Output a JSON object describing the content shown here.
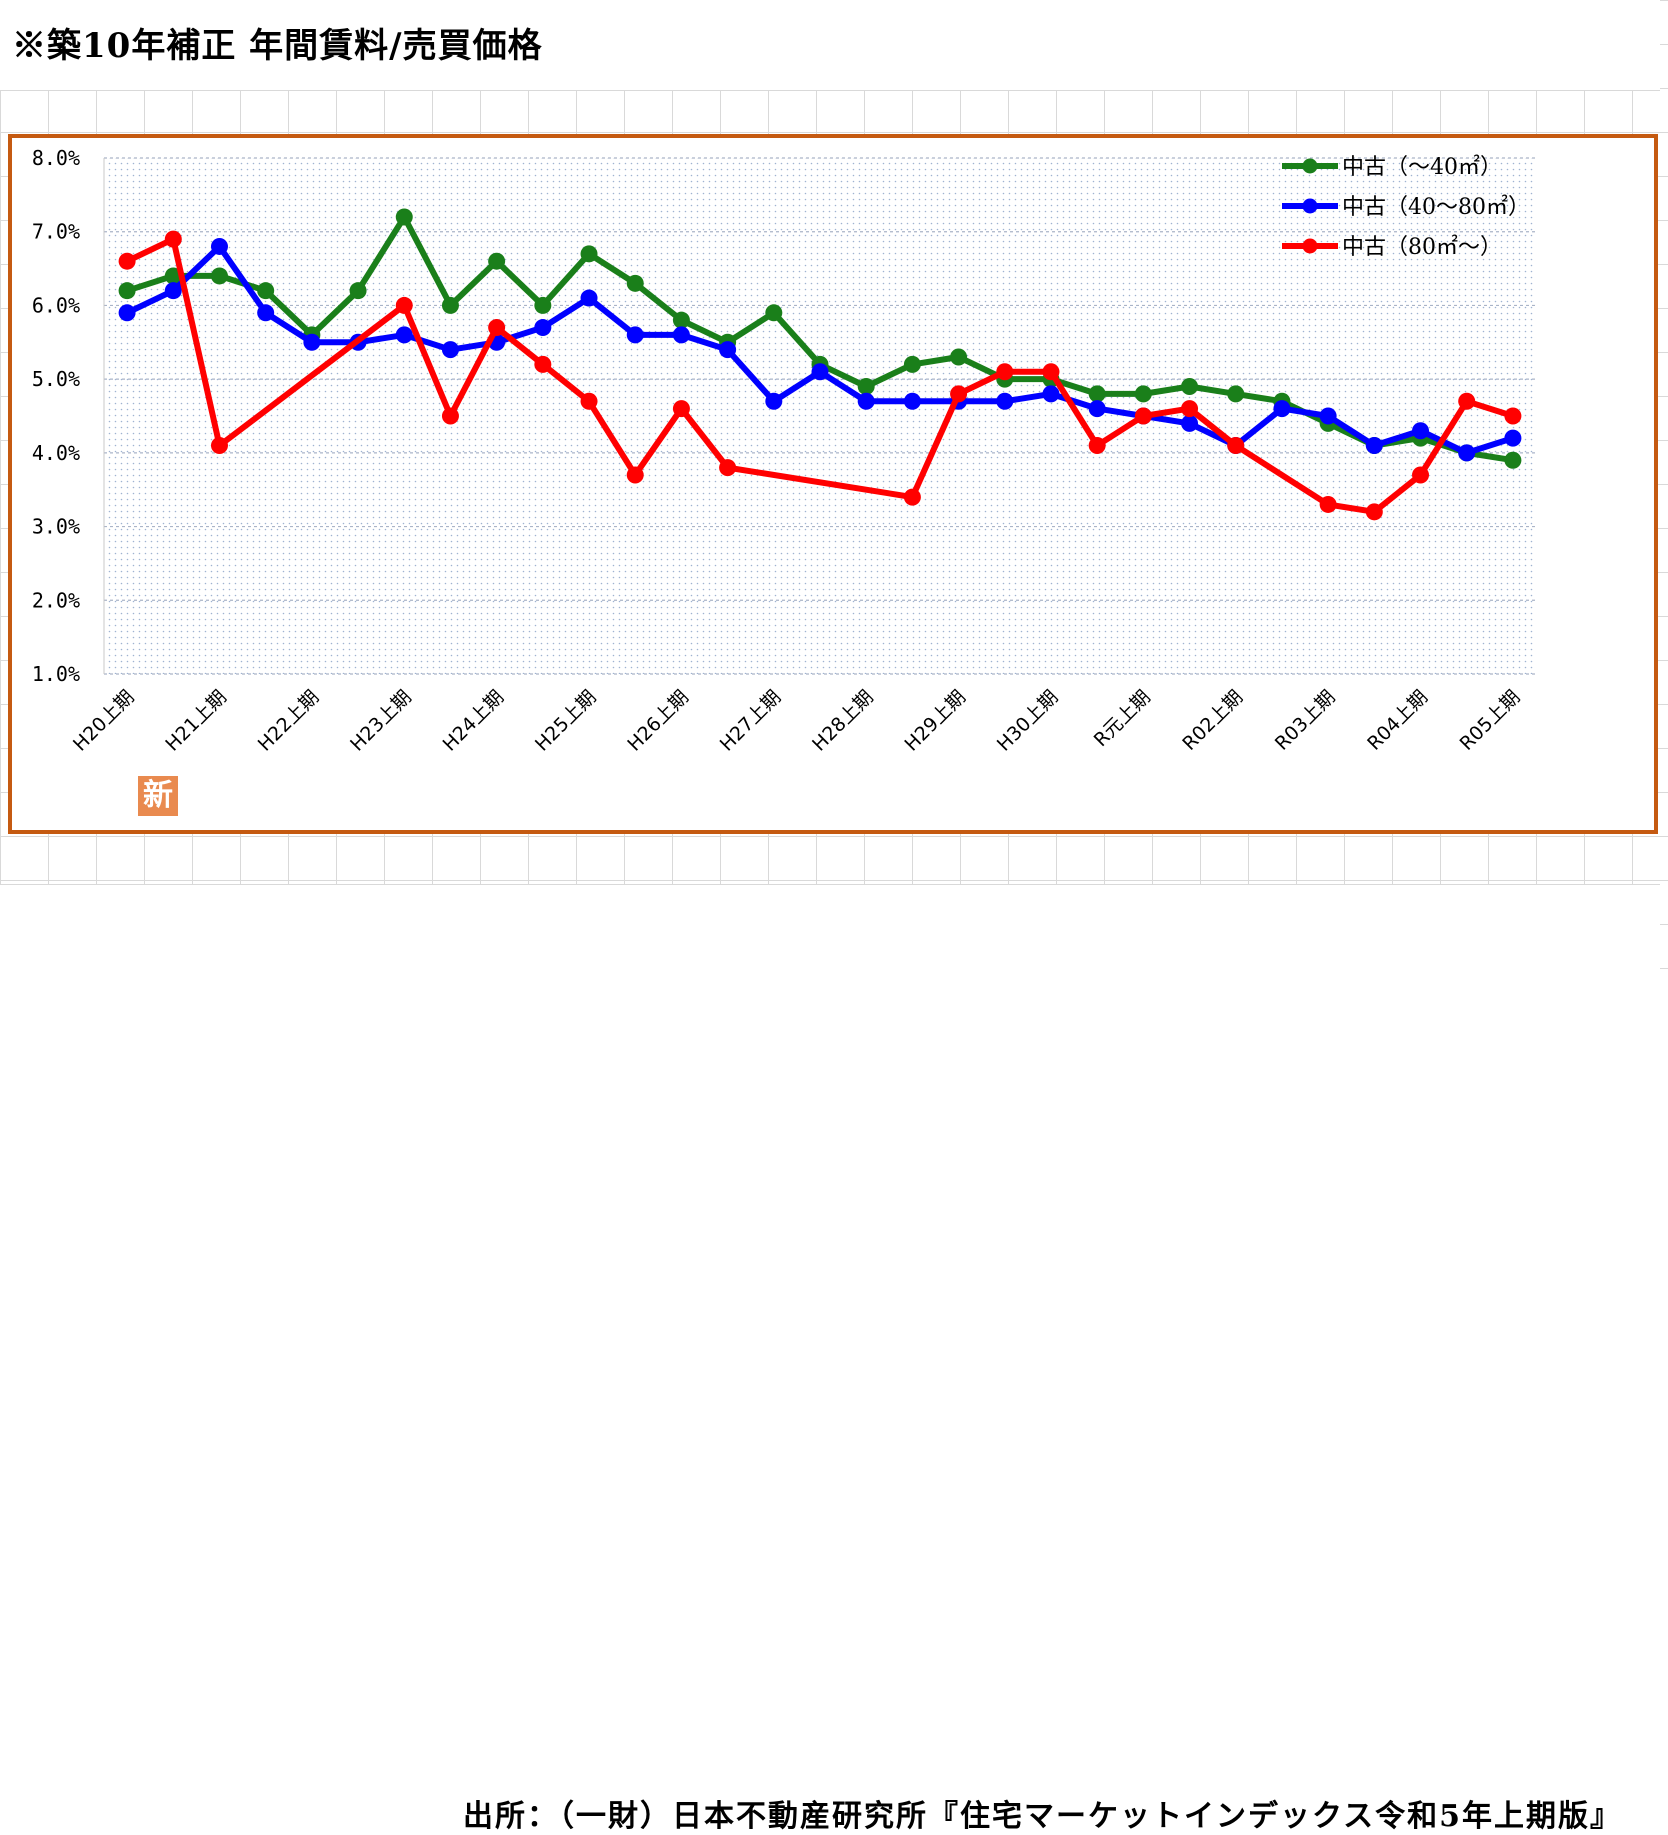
{
  "page": {
    "title": "※築10年補正 年間賃料/売買価格",
    "source": "出所：（一財）日本不動産研究所『住宅マーケットインデックス令和5年上期版』",
    "badge_text": "新",
    "frame_color": "#c55a11"
  },
  "chart_data": {
    "type": "line",
    "title": "",
    "xlabel": "",
    "ylabel": "",
    "ylim": [
      1.0,
      8.0
    ],
    "y_ticks": [
      "1.0%",
      "2.0%",
      "3.0%",
      "4.0%",
      "5.0%",
      "6.0%",
      "7.0%",
      "8.0%"
    ],
    "grid": true,
    "legend_position": "top-right",
    "x_tick_labels": [
      "H20上期",
      "H21上期",
      "H22上期",
      "H23上期",
      "H24上期",
      "H25上期",
      "H26上期",
      "H27上期",
      "H28上期",
      "H29上期",
      "H30上期",
      "R元上期",
      "R02上期",
      "R03上期",
      "R04上期",
      "R05上期"
    ],
    "x_count": 31,
    "series": [
      {
        "name": "中古（～40㎡）",
        "color": "#1a7f1a",
        "values": [
          6.2,
          6.4,
          6.4,
          6.2,
          5.6,
          6.2,
          7.2,
          6.0,
          6.6,
          6.0,
          6.7,
          6.3,
          5.8,
          5.5,
          5.9,
          5.2,
          4.9,
          5.2,
          5.3,
          5.0,
          5.0,
          4.8,
          4.8,
          4.9,
          4.8,
          4.7,
          4.4,
          4.1,
          4.2,
          4.0,
          3.9
        ]
      },
      {
        "name": "中古（40～80㎡）",
        "color": "#0000ff",
        "values": [
          5.9,
          6.2,
          6.8,
          5.9,
          5.5,
          5.5,
          5.6,
          5.4,
          5.5,
          5.7,
          6.1,
          5.6,
          5.6,
          5.4,
          4.7,
          5.1,
          4.7,
          4.7,
          4.7,
          4.7,
          4.8,
          4.6,
          4.5,
          4.4,
          4.1,
          4.6,
          4.5,
          4.1,
          4.3,
          4.0,
          4.2
        ]
      },
      {
        "name": "中古（80㎡～）",
        "color": "#ff0000",
        "values": [
          6.6,
          6.9,
          4.1,
          null,
          null,
          null,
          6.0,
          4.5,
          5.7,
          5.2,
          4.7,
          3.7,
          4.6,
          3.8,
          null,
          null,
          null,
          3.4,
          4.8,
          5.1,
          5.1,
          4.1,
          4.5,
          4.6,
          4.1,
          null,
          3.3,
          3.2,
          3.7,
          4.7,
          4.5
        ]
      }
    ]
  }
}
